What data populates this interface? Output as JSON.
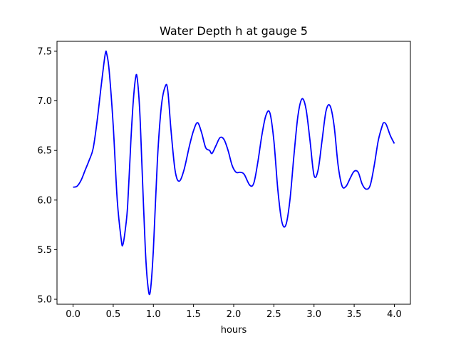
{
  "chart_data": {
    "type": "line",
    "title": "Water Depth h at gauge 5",
    "xlabel": "hours",
    "ylabel": "",
    "xlim": [
      -0.2,
      4.2
    ],
    "ylim": [
      4.95,
      7.6
    ],
    "xticks": [
      0.0,
      0.5,
      1.0,
      1.5,
      2.0,
      2.5,
      3.0,
      3.5,
      4.0
    ],
    "xtick_labels": [
      "0.0",
      "0.5",
      "1.0",
      "1.5",
      "2.0",
      "2.5",
      "3.0",
      "3.5",
      "4.0"
    ],
    "yticks": [
      5.0,
      5.5,
      6.0,
      6.5,
      7.0,
      7.5
    ],
    "ytick_labels": [
      "5.0",
      "5.5",
      "6.0",
      "6.5",
      "7.0",
      "7.5"
    ],
    "grid": false,
    "series": [
      {
        "color": "#0000ff",
        "points": [
          [
            0.0,
            6.13
          ],
          [
            0.05,
            6.14
          ],
          [
            0.1,
            6.2
          ],
          [
            0.15,
            6.3
          ],
          [
            0.2,
            6.4
          ],
          [
            0.25,
            6.52
          ],
          [
            0.3,
            6.8
          ],
          [
            0.35,
            7.15
          ],
          [
            0.4,
            7.47
          ],
          [
            0.42,
            7.47
          ],
          [
            0.45,
            7.3
          ],
          [
            0.5,
            6.75
          ],
          [
            0.55,
            6.0
          ],
          [
            0.6,
            5.6
          ],
          [
            0.62,
            5.55
          ],
          [
            0.65,
            5.7
          ],
          [
            0.68,
            5.95
          ],
          [
            0.72,
            6.6
          ],
          [
            0.75,
            7.0
          ],
          [
            0.78,
            7.24
          ],
          [
            0.8,
            7.22
          ],
          [
            0.83,
            6.9
          ],
          [
            0.86,
            6.3
          ],
          [
            0.9,
            5.5
          ],
          [
            0.93,
            5.15
          ],
          [
            0.96,
            5.07
          ],
          [
            1.0,
            5.5
          ],
          [
            1.05,
            6.4
          ],
          [
            1.1,
            6.95
          ],
          [
            1.15,
            7.15
          ],
          [
            1.18,
            7.1
          ],
          [
            1.22,
            6.7
          ],
          [
            1.27,
            6.3
          ],
          [
            1.32,
            6.19
          ],
          [
            1.38,
            6.3
          ],
          [
            1.45,
            6.55
          ],
          [
            1.5,
            6.7
          ],
          [
            1.55,
            6.78
          ],
          [
            1.6,
            6.68
          ],
          [
            1.65,
            6.53
          ],
          [
            1.7,
            6.5
          ],
          [
            1.73,
            6.47
          ],
          [
            1.78,
            6.55
          ],
          [
            1.83,
            6.63
          ],
          [
            1.88,
            6.61
          ],
          [
            1.93,
            6.5
          ],
          [
            1.98,
            6.35
          ],
          [
            2.03,
            6.28
          ],
          [
            2.08,
            6.28
          ],
          [
            2.13,
            6.26
          ],
          [
            2.2,
            6.15
          ],
          [
            2.25,
            6.17
          ],
          [
            2.3,
            6.38
          ],
          [
            2.35,
            6.65
          ],
          [
            2.4,
            6.85
          ],
          [
            2.45,
            6.88
          ],
          [
            2.5,
            6.6
          ],
          [
            2.55,
            6.1
          ],
          [
            2.6,
            5.78
          ],
          [
            2.65,
            5.75
          ],
          [
            2.7,
            6.0
          ],
          [
            2.75,
            6.45
          ],
          [
            2.8,
            6.85
          ],
          [
            2.85,
            7.02
          ],
          [
            2.9,
            6.92
          ],
          [
            2.95,
            6.6
          ],
          [
            3.0,
            6.25
          ],
          [
            3.05,
            6.3
          ],
          [
            3.1,
            6.6
          ],
          [
            3.15,
            6.9
          ],
          [
            3.2,
            6.95
          ],
          [
            3.25,
            6.75
          ],
          [
            3.3,
            6.35
          ],
          [
            3.35,
            6.14
          ],
          [
            3.4,
            6.14
          ],
          [
            3.45,
            6.22
          ],
          [
            3.5,
            6.29
          ],
          [
            3.55,
            6.28
          ],
          [
            3.6,
            6.16
          ],
          [
            3.65,
            6.11
          ],
          [
            3.7,
            6.15
          ],
          [
            3.75,
            6.35
          ],
          [
            3.8,
            6.6
          ],
          [
            3.85,
            6.75
          ],
          [
            3.87,
            6.78
          ],
          [
            3.9,
            6.76
          ],
          [
            3.95,
            6.65
          ],
          [
            4.0,
            6.57
          ]
        ]
      }
    ]
  }
}
